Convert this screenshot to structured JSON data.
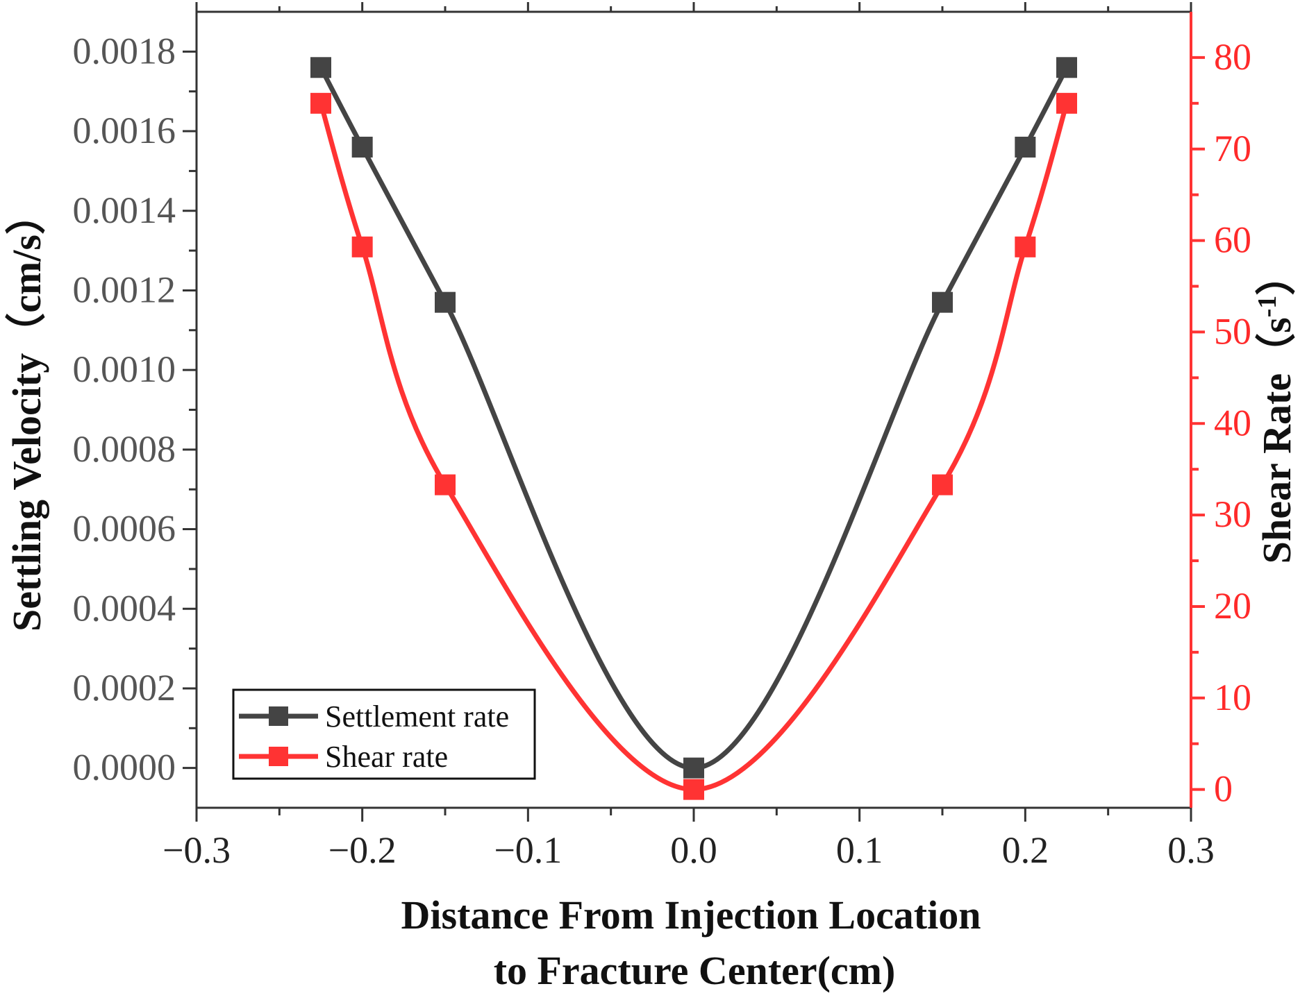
{
  "chart_data": {
    "type": "line",
    "title": "",
    "xlabel_lines": [
      "Distance From Injection Location",
      "to Fracture Center(cm)"
    ],
    "ylabel_left": "Settling Velocity（cm/s）",
    "ylabel_right_text": "Shear Rate（s",
    "ylabel_right_sup": "-1",
    "ylabel_right_close": "）",
    "xlim": [
      -0.3,
      0.3
    ],
    "ylim_left": [
      -0.0001,
      0.0019
    ],
    "ylim_right": [
      -2,
      85
    ],
    "x_ticks": [
      -0.3,
      -0.2,
      -0.1,
      0.0,
      0.1,
      0.2,
      0.3
    ],
    "x_tick_labels": [
      "−0.3",
      "−0.2",
      "−0.1",
      "0.0",
      "0.1",
      "0.2",
      "0.3"
    ],
    "y_left_ticks": [
      0.0,
      0.0002,
      0.0004,
      0.0006,
      0.0008,
      0.001,
      0.0012,
      0.0014,
      0.0016,
      0.0018
    ],
    "y_left_tick_labels": [
      "0.0000",
      "0.0002",
      "0.0004",
      "0.0006",
      "0.0008",
      "0.0010",
      "0.0012",
      "0.0014",
      "0.0016",
      "0.0018"
    ],
    "y_right_ticks": [
      0,
      10,
      20,
      30,
      40,
      50,
      60,
      70,
      80
    ],
    "y_right_tick_labels": [
      "0",
      "10",
      "20",
      "30",
      "40",
      "50",
      "60",
      "70",
      "80"
    ],
    "series": [
      {
        "name": "Settlement rate",
        "axis": "left",
        "color": "#444444",
        "x": [
          -0.225,
          -0.2,
          -0.15,
          0.0,
          0.15,
          0.2,
          0.225
        ],
        "y": [
          0.00176,
          0.00156,
          0.00117,
          0.0,
          0.00117,
          0.00156,
          0.00176
        ]
      },
      {
        "name": "Shear rate",
        "axis": "right",
        "color": "#ff3333",
        "x": [
          -0.225,
          -0.2,
          -0.15,
          0.0,
          0.15,
          0.2,
          0.225
        ],
        "y": [
          75,
          59.3,
          33.3,
          0,
          33.3,
          59.3,
          75
        ]
      }
    ],
    "legend": {
      "placement": "bottom-left",
      "entries": [
        "Settlement rate",
        "Shear rate"
      ]
    }
  }
}
